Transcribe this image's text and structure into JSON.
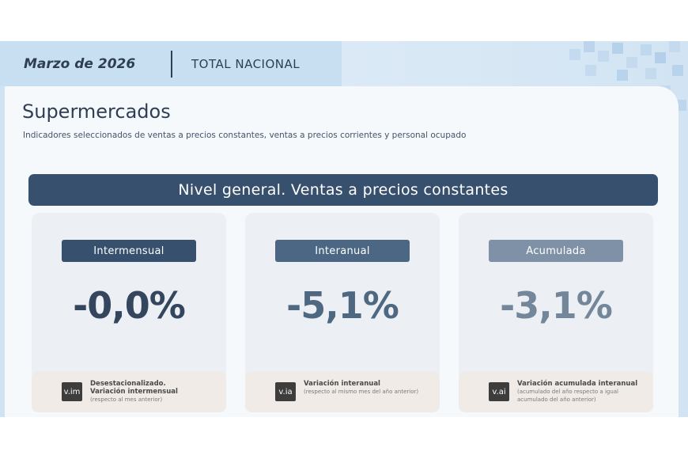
{
  "header": {
    "period": "Marzo de 2026",
    "region": "TOTAL NACIONAL"
  },
  "section": {
    "title": "Supermercados",
    "subtitle": "Indicadores seleccionados de ventas a precios constantes, ventas a precios corrientes y personal ocupado"
  },
  "banner": {
    "text": "Nivel general. Ventas a precios constantes"
  },
  "cards": [
    {
      "label": "Intermensual",
      "value": "-0,0%",
      "label_color": "#36506d",
      "value_color": "#33465e",
      "code": "v.im",
      "desc_lines": [
        "Desestacionalizado.",
        "Variación intermensual"
      ],
      "note": "(respecto al mes anterior)"
    },
    {
      "label": "Interanual",
      "value": "-5,1%",
      "label_color": "#4b6784",
      "value_color": "#4f6882",
      "code": "v.ia",
      "desc_lines": [
        "Variación interanual"
      ],
      "note": "(respecto al mismo mes del año anterior)"
    },
    {
      "label": "Acumulada",
      "value": "-3,1%",
      "label_color": "#7f91a6",
      "value_color": "#74869a",
      "code": "v.ai",
      "desc_lines": [
        "Variación acumulada interanual"
      ],
      "note": "(acumulado del año respecto a igual acumulado del año anterior)"
    }
  ]
}
